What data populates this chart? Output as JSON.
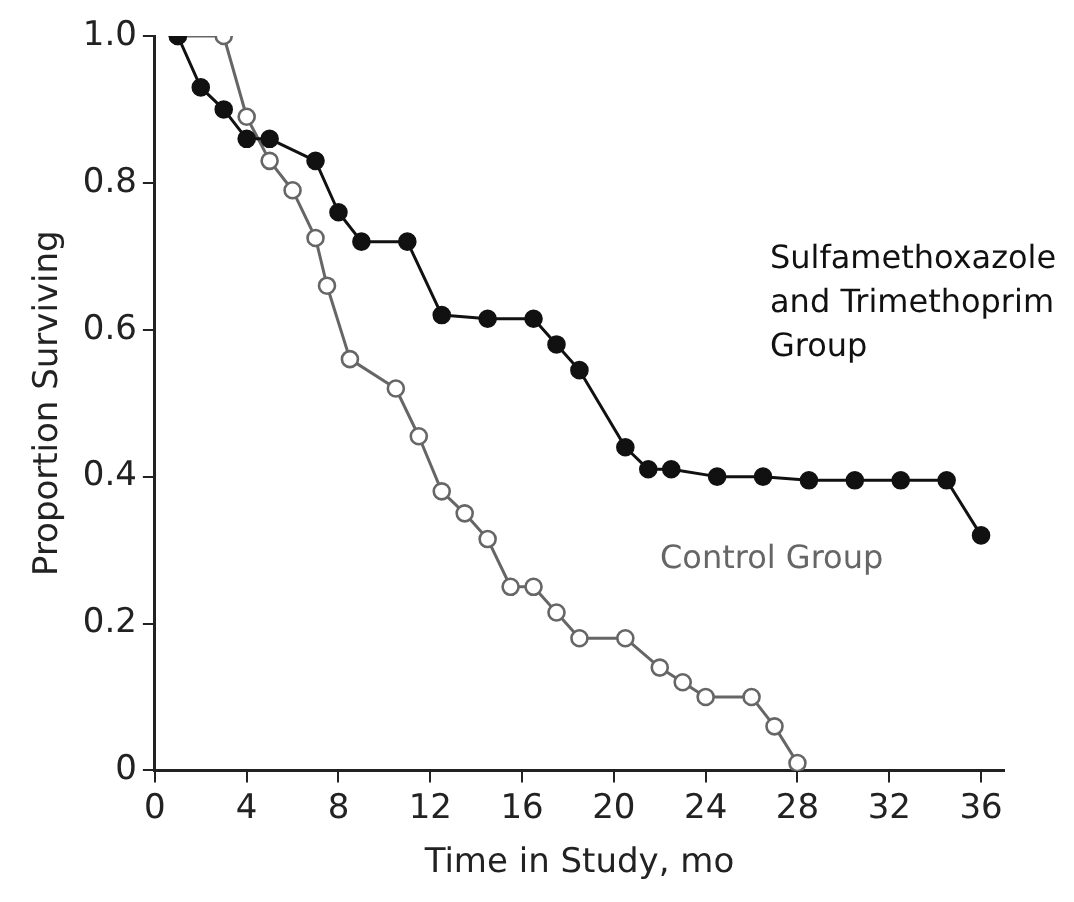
{
  "chart_data": {
    "type": "line",
    "xlabel": "Time in Study, mo",
    "ylabel": "Proportion Surviving",
    "xlim": [
      0,
      37
    ],
    "xticks": [
      0,
      4,
      8,
      12,
      16,
      20,
      24,
      28,
      32,
      36
    ],
    "ylim": [
      0,
      1
    ],
    "yticks": [
      0,
      0.2,
      0.4,
      0.6,
      0.8,
      {
        "value": 1,
        "label": "1.0"
      }
    ],
    "grid": false,
    "legend": false,
    "marker": "circle",
    "line_style": "solid",
    "series": [
      {
        "name": "Sulfamethoxazole and Trimethoprim Group",
        "color": "#111111",
        "x": [
          1,
          2,
          3,
          4,
          5,
          7,
          8,
          9,
          11,
          12.5,
          14.5,
          16.5,
          17.5,
          18.5,
          20.5,
          21.5,
          22.5,
          24.5,
          26.5,
          28.5,
          30.5,
          32.5,
          34.5,
          36
        ],
        "values": [
          1.0,
          0.93,
          0.9,
          0.86,
          0.86,
          0.83,
          0.76,
          0.72,
          0.72,
          0.62,
          0.615,
          0.615,
          0.58,
          0.545,
          0.44,
          0.41,
          0.41,
          0.4,
          0.4,
          0.395,
          0.395,
          0.395,
          0.395,
          0.32
        ]
      },
      {
        "name": "Control Group",
        "color": "#666666",
        "x": [
          1,
          3,
          4,
          5,
          6,
          7,
          7.5,
          8.5,
          10.5,
          11.5,
          12.5,
          13.5,
          14.5,
          15.5,
          16.5,
          17.5,
          18.5,
          20.5,
          22,
          23,
          24,
          26,
          27,
          28
        ],
        "values": [
          1.0,
          1.0,
          0.89,
          0.83,
          0.79,
          0.725,
          0.66,
          0.56,
          0.52,
          0.455,
          0.38,
          0.35,
          0.315,
          0.25,
          0.25,
          0.215,
          0.18,
          0.18,
          0.14,
          0.12,
          0.1,
          0.1,
          0.06,
          0.01
        ]
      }
    ]
  }
}
